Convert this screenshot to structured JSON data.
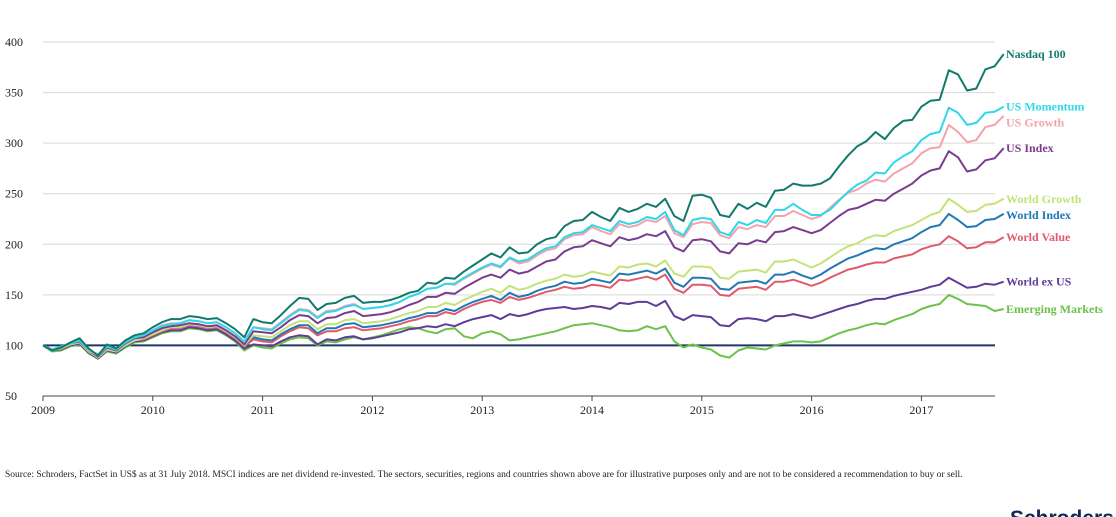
{
  "chart_data": {
    "type": "line",
    "title": "",
    "xlabel": "",
    "ylabel": "",
    "ylim": [
      50,
      400
    ],
    "yticks": [
      50,
      100,
      150,
      200,
      250,
      300,
      350,
      400
    ],
    "xlim": [
      2009.0,
      2017.67
    ],
    "xticks": [
      "2009",
      "2010",
      "2011",
      "2012",
      "2013",
      "2014",
      "2015",
      "2016",
      "2017"
    ],
    "grid": true,
    "legend": "labels at line ends (right)",
    "baseline": {
      "value": 100,
      "color": "#1f3864"
    },
    "x_start": 2009.0,
    "x_step_years": 0.08333,
    "series": [
      {
        "name": "Nasdaq 100",
        "color": "#127a6d",
        "values": [
          100,
          95,
          98,
          103,
          107,
          97,
          90,
          101,
          97,
          105,
          110,
          112,
          118,
          123,
          126,
          126,
          129,
          128,
          126,
          127,
          122,
          116,
          108,
          126,
          123,
          122,
          130,
          139,
          147,
          146,
          135,
          141,
          142,
          147,
          149,
          142,
          143,
          143,
          145,
          148,
          152,
          154,
          162,
          161,
          167,
          166,
          173,
          179,
          185,
          191,
          187,
          197,
          191,
          192,
          200,
          205,
          207,
          218,
          223,
          224,
          232,
          227,
          223,
          236,
          232,
          235,
          240,
          237,
          245,
          228,
          223,
          248,
          249,
          246,
          229,
          227,
          240,
          235,
          241,
          237,
          253,
          254,
          260,
          258,
          258,
          260,
          265,
          277,
          288,
          297,
          302,
          311,
          304,
          315,
          322,
          323,
          336,
          342,
          343,
          372,
          368,
          352,
          354,
          373,
          376,
          388
        ]
      },
      {
        "name": "US Momentum",
        "color": "#2ed8ea",
        "values": [
          100,
          96,
          99,
          102,
          105,
          96,
          91,
          99,
          96,
          103,
          108,
          110,
          115,
          119,
          121,
          122,
          125,
          124,
          122,
          123,
          118,
          112,
          104,
          118,
          116,
          115,
          122,
          129,
          135,
          134,
          127,
          133,
          134,
          138,
          140,
          136,
          137,
          138,
          140,
          143,
          148,
          151,
          156,
          157,
          161,
          161,
          167,
          172,
          177,
          181,
          178,
          187,
          183,
          185,
          191,
          196,
          198,
          207,
          211,
          212,
          219,
          216,
          213,
          223,
          220,
          222,
          227,
          225,
          232,
          214,
          209,
          224,
          226,
          225,
          212,
          209,
          222,
          219,
          224,
          221,
          234,
          234,
          240,
          234,
          229,
          229,
          234,
          243,
          252,
          259,
          263,
          271,
          270,
          281,
          287,
          292,
          303,
          309,
          311,
          335,
          330,
          318,
          320,
          330,
          331,
          336
        ]
      },
      {
        "name": "US Growth",
        "color": "#f4a3ad",
        "values": [
          100,
          96,
          98,
          102,
          105,
          95,
          90,
          99,
          96,
          103,
          108,
          110,
          115,
          120,
          122,
          122,
          125,
          124,
          122,
          123,
          118,
          112,
          104,
          118,
          117,
          116,
          123,
          130,
          136,
          135,
          128,
          134,
          135,
          139,
          141,
          136,
          137,
          138,
          140,
          143,
          148,
          151,
          156,
          157,
          161,
          160,
          166,
          171,
          176,
          180,
          177,
          186,
          181,
          183,
          189,
          194,
          196,
          205,
          209,
          210,
          217,
          213,
          210,
          220,
          217,
          219,
          224,
          222,
          228,
          211,
          207,
          220,
          222,
          221,
          209,
          206,
          217,
          215,
          219,
          217,
          228,
          228,
          233,
          229,
          225,
          228,
          236,
          244,
          251,
          254,
          260,
          264,
          262,
          270,
          275,
          280,
          290,
          295,
          296,
          318,
          311,
          301,
          303,
          316,
          318,
          327
        ]
      },
      {
        "name": "US Index",
        "color": "#7a3d8e",
        "values": [
          100,
          96,
          98,
          102,
          104,
          95,
          89,
          98,
          95,
          102,
          107,
          108,
          113,
          117,
          119,
          120,
          122,
          121,
          119,
          120,
          115,
          109,
          101,
          114,
          113,
          112,
          118,
          125,
          130,
          129,
          122,
          127,
          128,
          132,
          134,
          129,
          130,
          131,
          133,
          136,
          140,
          143,
          148,
          148,
          152,
          151,
          157,
          162,
          167,
          170,
          167,
          175,
          171,
          173,
          178,
          183,
          185,
          193,
          197,
          198,
          204,
          201,
          198,
          207,
          204,
          206,
          210,
          208,
          213,
          197,
          193,
          204,
          205,
          203,
          193,
          191,
          201,
          200,
          204,
          202,
          212,
          213,
          217,
          214,
          211,
          214,
          221,
          228,
          234,
          236,
          240,
          244,
          243,
          250,
          255,
          260,
          268,
          273,
          275,
          292,
          286,
          272,
          274,
          283,
          285,
          295
        ]
      },
      {
        "name": "World Growth",
        "color": "#c3e27a",
        "values": [
          100,
          95,
          97,
          101,
          103,
          94,
          88,
          96,
          94,
          100,
          105,
          107,
          111,
          115,
          118,
          118,
          121,
          120,
          118,
          119,
          114,
          108,
          100,
          110,
          109,
          108,
          114,
          120,
          124,
          124,
          116,
          121,
          121,
          125,
          126,
          122,
          123,
          124,
          126,
          129,
          132,
          134,
          138,
          138,
          142,
          140,
          145,
          149,
          153,
          156,
          152,
          159,
          155,
          157,
          161,
          164,
          166,
          170,
          168,
          169,
          173,
          171,
          169,
          178,
          177,
          180,
          181,
          178,
          184,
          171,
          168,
          178,
          178,
          177,
          167,
          166,
          173,
          174,
          175,
          172,
          183,
          183,
          185,
          181,
          177,
          181,
          187,
          193,
          198,
          201,
          206,
          209,
          208,
          213,
          216,
          219,
          224,
          229,
          232,
          245,
          239,
          232,
          233,
          239,
          240,
          245
        ]
      },
      {
        "name": "World Index",
        "color": "#2278b5",
        "values": [
          100,
          95,
          97,
          101,
          103,
          94,
          88,
          96,
          94,
          100,
          105,
          107,
          111,
          115,
          118,
          118,
          121,
          120,
          118,
          119,
          114,
          108,
          100,
          108,
          106,
          105,
          111,
          116,
          120,
          120,
          112,
          117,
          117,
          121,
          122,
          118,
          119,
          120,
          122,
          124,
          127,
          129,
          132,
          132,
          136,
          134,
          139,
          143,
          146,
          149,
          145,
          152,
          148,
          150,
          154,
          157,
          159,
          163,
          161,
          162,
          166,
          164,
          162,
          171,
          170,
          172,
          174,
          171,
          176,
          162,
          158,
          167,
          167,
          166,
          156,
          155,
          162,
          163,
          164,
          161,
          170,
          170,
          173,
          169,
          166,
          170,
          176,
          181,
          186,
          189,
          193,
          196,
          195,
          200,
          203,
          206,
          212,
          217,
          219,
          230,
          224,
          217,
          218,
          224,
          225,
          230
        ]
      },
      {
        "name": "World Value",
        "color": "#e05a6c",
        "values": [
          100,
          95,
          97,
          101,
          103,
          94,
          88,
          96,
          94,
          100,
          105,
          106,
          110,
          114,
          117,
          117,
          120,
          119,
          117,
          118,
          113,
          107,
          99,
          106,
          104,
          103,
          109,
          114,
          118,
          117,
          110,
          114,
          114,
          117,
          118,
          115,
          116,
          117,
          119,
          121,
          124,
          126,
          129,
          129,
          133,
          131,
          136,
          140,
          143,
          145,
          142,
          148,
          145,
          147,
          150,
          153,
          155,
          158,
          156,
          157,
          160,
          159,
          157,
          165,
          164,
          166,
          168,
          165,
          170,
          156,
          152,
          160,
          160,
          159,
          150,
          149,
          156,
          157,
          158,
          155,
          163,
          163,
          165,
          162,
          159,
          162,
          167,
          171,
          175,
          177,
          180,
          182,
          182,
          186,
          188,
          190,
          195,
          198,
          200,
          208,
          203,
          196,
          197,
          202,
          202,
          207
        ]
      },
      {
        "name": "World ex US",
        "color": "#5e3d99",
        "values": [
          100,
          95,
          96,
          100,
          102,
          93,
          87,
          95,
          93,
          99,
          104,
          105,
          109,
          113,
          115,
          115,
          118,
          117,
          115,
          116,
          111,
          105,
          97,
          101,
          100,
          99,
          104,
          108,
          110,
          109,
          101,
          106,
          105,
          108,
          109,
          106,
          107,
          109,
          111,
          113,
          116,
          117,
          119,
          118,
          121,
          119,
          123,
          126,
          128,
          130,
          126,
          131,
          129,
          131,
          134,
          136,
          137,
          138,
          136,
          137,
          139,
          138,
          136,
          142,
          141,
          143,
          143,
          139,
          144,
          129,
          125,
          130,
          129,
          128,
          120,
          119,
          126,
          127,
          126,
          124,
          129,
          129,
          131,
          129,
          127,
          130,
          133,
          136,
          139,
          141,
          144,
          146,
          146,
          149,
          151,
          153,
          155,
          158,
          160,
          167,
          162,
          157,
          158,
          161,
          160,
          163
        ]
      },
      {
        "name": "Emerging Markets",
        "color": "#6cc24a",
        "values": [
          100,
          94,
          95,
          99,
          101,
          92,
          87,
          94,
          92,
          98,
          103,
          104,
          108,
          112,
          114,
          114,
          117,
          116,
          114,
          115,
          110,
          104,
          95,
          100,
          98,
          97,
          102,
          106,
          108,
          107,
          100,
          104,
          103,
          106,
          108,
          106,
          108,
          110,
          113,
          116,
          118,
          117,
          114,
          112,
          116,
          117,
          109,
          107,
          112,
          114,
          111,
          105,
          106,
          108,
          110,
          112,
          114,
          117,
          120,
          121,
          122,
          120,
          118,
          115,
          114,
          115,
          119,
          116,
          119,
          104,
          98,
          101,
          98,
          96,
          90,
          88,
          95,
          98,
          97,
          96,
          100,
          102,
          104,
          104,
          103,
          104,
          108,
          112,
          115,
          117,
          120,
          122,
          121,
          125,
          128,
          131,
          136,
          139,
          141,
          150,
          146,
          141,
          140,
          139,
          134,
          136
        ]
      }
    ]
  },
  "footnote": "Source: Schroders, FactSet in US$ as at 31 July 2018. MSCI indices are net dividend re-invested. The sectors, securities, regions and countries shown above are for illustrative purposes only and are not to be considered a recommendation to buy or sell.",
  "brand": "Schroders"
}
